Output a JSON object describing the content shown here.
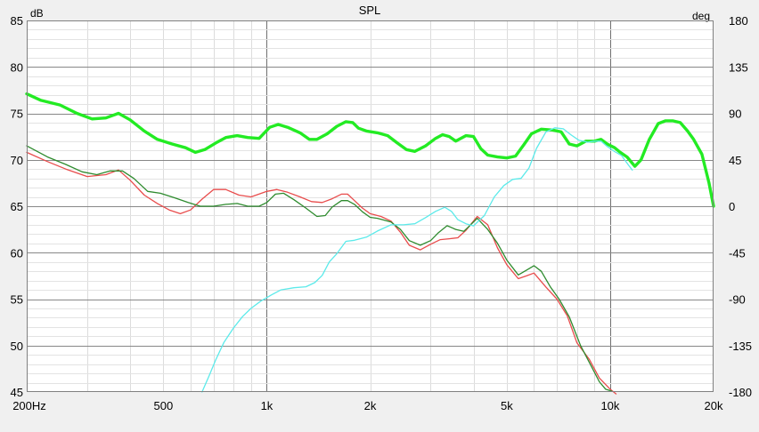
{
  "chart_data": {
    "type": "line",
    "title": "SPL",
    "y_left_unit": "dB",
    "y_right_unit": "deg",
    "x_scale": "log",
    "xlim": [
      200,
      20000
    ],
    "ylim_left": [
      45,
      85
    ],
    "ylim_right": [
      -180,
      180
    ],
    "grid": true,
    "x_ticks": [
      {
        "value": 200,
        "label": "200Hz"
      },
      {
        "value": 500,
        "label": "500"
      },
      {
        "value": 1000,
        "label": "1k"
      },
      {
        "value": 2000,
        "label": "2k"
      },
      {
        "value": 5000,
        "label": "5k"
      },
      {
        "value": 10000,
        "label": "10k"
      },
      {
        "value": 20000,
        "label": "20k"
      }
    ],
    "y_left_ticks": [
      {
        "value": 85,
        "label": "85"
      },
      {
        "value": 80,
        "label": "80"
      },
      {
        "value": 75,
        "label": "75"
      },
      {
        "value": 70,
        "label": "70"
      },
      {
        "value": 65,
        "label": "65"
      },
      {
        "value": 60,
        "label": "60"
      },
      {
        "value": 55,
        "label": "55"
      },
      {
        "value": 50,
        "label": "50"
      },
      {
        "value": 45,
        "label": "45"
      }
    ],
    "y_right_ticks": [
      {
        "value": 180,
        "label": "180"
      },
      {
        "value": 135,
        "label": "135"
      },
      {
        "value": 90,
        "label": "90"
      },
      {
        "value": 45,
        "label": "45"
      },
      {
        "value": 0,
        "label": "0"
      },
      {
        "value": -45,
        "label": "-45"
      },
      {
        "value": -90,
        "label": "-90"
      },
      {
        "value": -135,
        "label": "-135"
      },
      {
        "value": -180,
        "label": "-180"
      }
    ],
    "series": [
      {
        "color": "#e84c4c",
        "width": 1.3,
        "axis": "left",
        "points": [
          [
            200,
            70.8
          ],
          [
            230,
            69.8
          ],
          [
            260,
            69
          ],
          [
            300,
            68.2
          ],
          [
            340,
            68.4
          ],
          [
            370,
            68.9
          ],
          [
            400,
            67.8
          ],
          [
            440,
            66.2
          ],
          [
            480,
            65.3
          ],
          [
            520,
            64.6
          ],
          [
            560,
            64.2
          ],
          [
            600,
            64.6
          ],
          [
            650,
            65.8
          ],
          [
            700,
            66.8
          ],
          [
            760,
            66.8
          ],
          [
            830,
            66.2
          ],
          [
            900,
            66
          ],
          [
            1000,
            66.6
          ],
          [
            1070,
            66.8
          ],
          [
            1150,
            66.5
          ],
          [
            1250,
            66
          ],
          [
            1350,
            65.5
          ],
          [
            1450,
            65.4
          ],
          [
            1550,
            65.8
          ],
          [
            1650,
            66.3
          ],
          [
            1720,
            66.3
          ],
          [
            1800,
            65.6
          ],
          [
            1900,
            64.8
          ],
          [
            2000,
            64.2
          ],
          [
            2150,
            63.9
          ],
          [
            2300,
            63.4
          ],
          [
            2450,
            62.2
          ],
          [
            2600,
            60.8
          ],
          [
            2800,
            60.3
          ],
          [
            3000,
            60.9
          ],
          [
            3200,
            61.4
          ],
          [
            3400,
            61.5
          ],
          [
            3600,
            61.6
          ],
          [
            3800,
            62.4
          ],
          [
            4100,
            63.9
          ],
          [
            4400,
            63
          ],
          [
            4700,
            60.5
          ],
          [
            5000,
            58.7
          ],
          [
            5400,
            57.2
          ],
          [
            5700,
            57.5
          ],
          [
            6000,
            57.8
          ],
          [
            6500,
            56.3
          ],
          [
            7000,
            55
          ],
          [
            7500,
            53.2
          ],
          [
            8000,
            50.3
          ],
          [
            8700,
            48.5
          ],
          [
            9300,
            46.5
          ],
          [
            10000,
            45.3
          ],
          [
            10400,
            44.8
          ]
        ]
      },
      {
        "color": "#2e8b2e",
        "width": 1.3,
        "axis": "left",
        "points": [
          [
            200,
            71.5
          ],
          [
            230,
            70.3
          ],
          [
            260,
            69.5
          ],
          [
            290,
            68.7
          ],
          [
            320,
            68.4
          ],
          [
            350,
            68.8
          ],
          [
            380,
            68.8
          ],
          [
            410,
            68
          ],
          [
            450,
            66.6
          ],
          [
            490,
            66.4
          ],
          [
            540,
            65.9
          ],
          [
            590,
            65.4
          ],
          [
            640,
            65
          ],
          [
            700,
            65
          ],
          [
            760,
            65.2
          ],
          [
            820,
            65.3
          ],
          [
            880,
            65
          ],
          [
            950,
            65
          ],
          [
            1000,
            65.4
          ],
          [
            1060,
            66.3
          ],
          [
            1120,
            66.4
          ],
          [
            1200,
            65.7
          ],
          [
            1300,
            64.8
          ],
          [
            1400,
            63.9
          ],
          [
            1480,
            64
          ],
          [
            1550,
            64.9
          ],
          [
            1650,
            65.6
          ],
          [
            1720,
            65.6
          ],
          [
            1800,
            65.2
          ],
          [
            1900,
            64.4
          ],
          [
            2000,
            63.8
          ],
          [
            2100,
            63.7
          ],
          [
            2300,
            63.3
          ],
          [
            2450,
            62.5
          ],
          [
            2600,
            61.3
          ],
          [
            2800,
            60.8
          ],
          [
            3000,
            61.3
          ],
          [
            3150,
            62.1
          ],
          [
            3350,
            62.9
          ],
          [
            3550,
            62.5
          ],
          [
            3750,
            62.3
          ],
          [
            3900,
            62.9
          ],
          [
            4100,
            63.7
          ],
          [
            4400,
            62.5
          ],
          [
            4700,
            61
          ],
          [
            5000,
            59.2
          ],
          [
            5400,
            57.6
          ],
          [
            5700,
            58.1
          ],
          [
            6000,
            58.6
          ],
          [
            6300,
            58
          ],
          [
            6700,
            56.3
          ],
          [
            7100,
            55
          ],
          [
            7600,
            53.1
          ],
          [
            8200,
            50
          ],
          [
            8800,
            47.8
          ],
          [
            9300,
            46.1
          ],
          [
            9700,
            45.3
          ],
          [
            10100,
            45.1
          ]
        ]
      },
      {
        "color": "#23eb23",
        "width": 3.4,
        "axis": "left",
        "points": [
          [
            200,
            77.1
          ],
          [
            220,
            76.4
          ],
          [
            250,
            75.9
          ],
          [
            280,
            75
          ],
          [
            310,
            74.4
          ],
          [
            340,
            74.5
          ],
          [
            370,
            75
          ],
          [
            400,
            74.3
          ],
          [
            440,
            73.1
          ],
          [
            480,
            72.2
          ],
          [
            530,
            71.7
          ],
          [
            580,
            71.3
          ],
          [
            620,
            70.8
          ],
          [
            660,
            71.1
          ],
          [
            710,
            71.8
          ],
          [
            760,
            72.4
          ],
          [
            820,
            72.6
          ],
          [
            880,
            72.4
          ],
          [
            950,
            72.3
          ],
          [
            1020,
            73.5
          ],
          [
            1080,
            73.8
          ],
          [
            1150,
            73.5
          ],
          [
            1250,
            72.9
          ],
          [
            1330,
            72.2
          ],
          [
            1400,
            72.2
          ],
          [
            1500,
            72.8
          ],
          [
            1600,
            73.6
          ],
          [
            1700,
            74.1
          ],
          [
            1780,
            74
          ],
          [
            1850,
            73.4
          ],
          [
            1950,
            73.1
          ],
          [
            2100,
            72.9
          ],
          [
            2250,
            72.6
          ],
          [
            2400,
            71.8
          ],
          [
            2550,
            71.1
          ],
          [
            2700,
            70.9
          ],
          [
            2900,
            71.5
          ],
          [
            3100,
            72.3
          ],
          [
            3250,
            72.7
          ],
          [
            3400,
            72.5
          ],
          [
            3550,
            72
          ],
          [
            3800,
            72.6
          ],
          [
            4000,
            72.5
          ],
          [
            4200,
            71.2
          ],
          [
            4400,
            70.5
          ],
          [
            4700,
            70.3
          ],
          [
            5000,
            70.2
          ],
          [
            5300,
            70.4
          ],
          [
            5600,
            71.6
          ],
          [
            5900,
            72.8
          ],
          [
            6300,
            73.3
          ],
          [
            6800,
            73.2
          ],
          [
            7200,
            73
          ],
          [
            7600,
            71.7
          ],
          [
            8000,
            71.5
          ],
          [
            8500,
            72
          ],
          [
            9000,
            72
          ],
          [
            9400,
            72.2
          ],
          [
            9800,
            71.7
          ],
          [
            10300,
            71.3
          ],
          [
            10700,
            70.8
          ],
          [
            11200,
            70.3
          ],
          [
            11800,
            69.3
          ],
          [
            12300,
            70
          ],
          [
            13000,
            72.2
          ],
          [
            13800,
            73.9
          ],
          [
            14500,
            74.2
          ],
          [
            15200,
            74.2
          ],
          [
            16000,
            74
          ],
          [
            16800,
            73.1
          ],
          [
            17500,
            72.2
          ],
          [
            18500,
            70.6
          ],
          [
            19400,
            67.5
          ],
          [
            20000,
            65
          ]
        ]
      },
      {
        "color": "#5ceaea",
        "width": 1.3,
        "axis": "right",
        "points": [
          [
            648,
            -180
          ],
          [
            680,
            -164
          ],
          [
            710,
            -149
          ],
          [
            750,
            -132
          ],
          [
            800,
            -118
          ],
          [
            850,
            -107
          ],
          [
            900,
            -99
          ],
          [
            960,
            -92
          ],
          [
            1030,
            -86
          ],
          [
            1100,
            -81
          ],
          [
            1200,
            -79
          ],
          [
            1300,
            -78
          ],
          [
            1380,
            -74
          ],
          [
            1450,
            -67
          ],
          [
            1520,
            -54
          ],
          [
            1600,
            -46
          ],
          [
            1700,
            -34
          ],
          [
            1800,
            -33
          ],
          [
            1950,
            -30
          ],
          [
            2100,
            -24
          ],
          [
            2300,
            -18
          ],
          [
            2500,
            -18
          ],
          [
            2700,
            -17
          ],
          [
            2900,
            -11
          ],
          [
            3100,
            -5
          ],
          [
            3300,
            -1
          ],
          [
            3450,
            -5
          ],
          [
            3600,
            -13
          ],
          [
            3800,
            -17
          ],
          [
            4000,
            -19
          ],
          [
            4300,
            -9
          ],
          [
            4600,
            9
          ],
          [
            4900,
            20
          ],
          [
            5200,
            26
          ],
          [
            5500,
            27
          ],
          [
            5800,
            37
          ],
          [
            6100,
            56
          ],
          [
            6500,
            72
          ],
          [
            6900,
            76
          ],
          [
            7300,
            75
          ],
          [
            7700,
            69
          ],
          [
            8100,
            64
          ],
          [
            8600,
            62
          ],
          [
            9000,
            63
          ],
          [
            9400,
            63
          ],
          [
            9800,
            58
          ],
          [
            10300,
            53
          ],
          [
            10800,
            49
          ],
          [
            11300,
            40
          ],
          [
            11600,
            35
          ]
        ]
      }
    ]
  }
}
